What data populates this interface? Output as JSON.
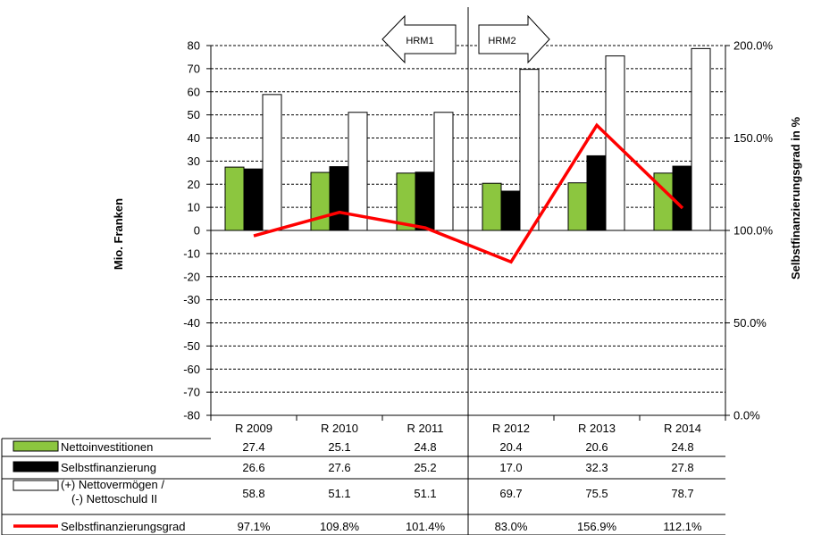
{
  "chart_data": {
    "type": "bar",
    "categories": [
      "R 2009",
      "R 2010",
      "R 2011",
      "R 2012",
      "R 2013",
      "R 2014"
    ],
    "series": [
      {
        "name": "Nettoinvestitionen",
        "kind": "bar",
        "color": "#8cc63f",
        "values": [
          27.4,
          25.1,
          24.8,
          20.4,
          20.6,
          24.8
        ],
        "labels": [
          "27.4",
          "25.1",
          "24.8",
          "20.4",
          "20.6",
          "24.8"
        ]
      },
      {
        "name": "Selbstfinanzierung",
        "kind": "bar",
        "color": "#000000",
        "values": [
          26.6,
          27.6,
          25.2,
          17.0,
          32.3,
          27.8
        ],
        "labels": [
          "26.6",
          "27.6",
          "25.2",
          "17.0",
          "32.3",
          "27.8"
        ]
      },
      {
        "name": "(+) Nettovermögen /\n(-) Nettoschuld II",
        "name_lines": [
          "(+) Nettovermögen /",
          "(-) Nettoschuld II"
        ],
        "kind": "bar",
        "color": "#ffffff",
        "values": [
          58.8,
          51.1,
          51.1,
          69.7,
          75.5,
          78.7
        ],
        "labels": [
          "58.8",
          "51.1",
          "51.1",
          "69.7",
          "75.5",
          "78.7"
        ]
      },
      {
        "name": "Selbstfinanzierungsgrad",
        "kind": "line",
        "axis": "right",
        "color": "#ff0000",
        "values": [
          97.1,
          109.8,
          101.4,
          83.0,
          156.9,
          112.1
        ],
        "labels": [
          "97.1%",
          "109.8%",
          "101.4%",
          "83.0%",
          "156.9%",
          "112.1%"
        ]
      }
    ],
    "ylabel": "Mio. Franken",
    "ylim": [
      -80,
      80
    ],
    "yticks": [
      "80",
      "70",
      "60",
      "50",
      "40",
      "30",
      "20",
      "10",
      "0",
      "-10",
      "-20",
      "-30",
      "-40",
      "-50",
      "-60",
      "-70",
      "-80"
    ],
    "y2label": "Selbstfinanzierungsgrad in %",
    "y2lim": [
      0,
      200
    ],
    "y2ticks": [
      "200.0%",
      "150.0%",
      "100.0%",
      "50.0%",
      "0.0%"
    ],
    "grid": true,
    "legend": "data table below chart",
    "annotations": [
      {
        "text": "HRM1",
        "shape": "arrow-left"
      },
      {
        "text": "HRM2",
        "shape": "arrow-right"
      }
    ]
  }
}
